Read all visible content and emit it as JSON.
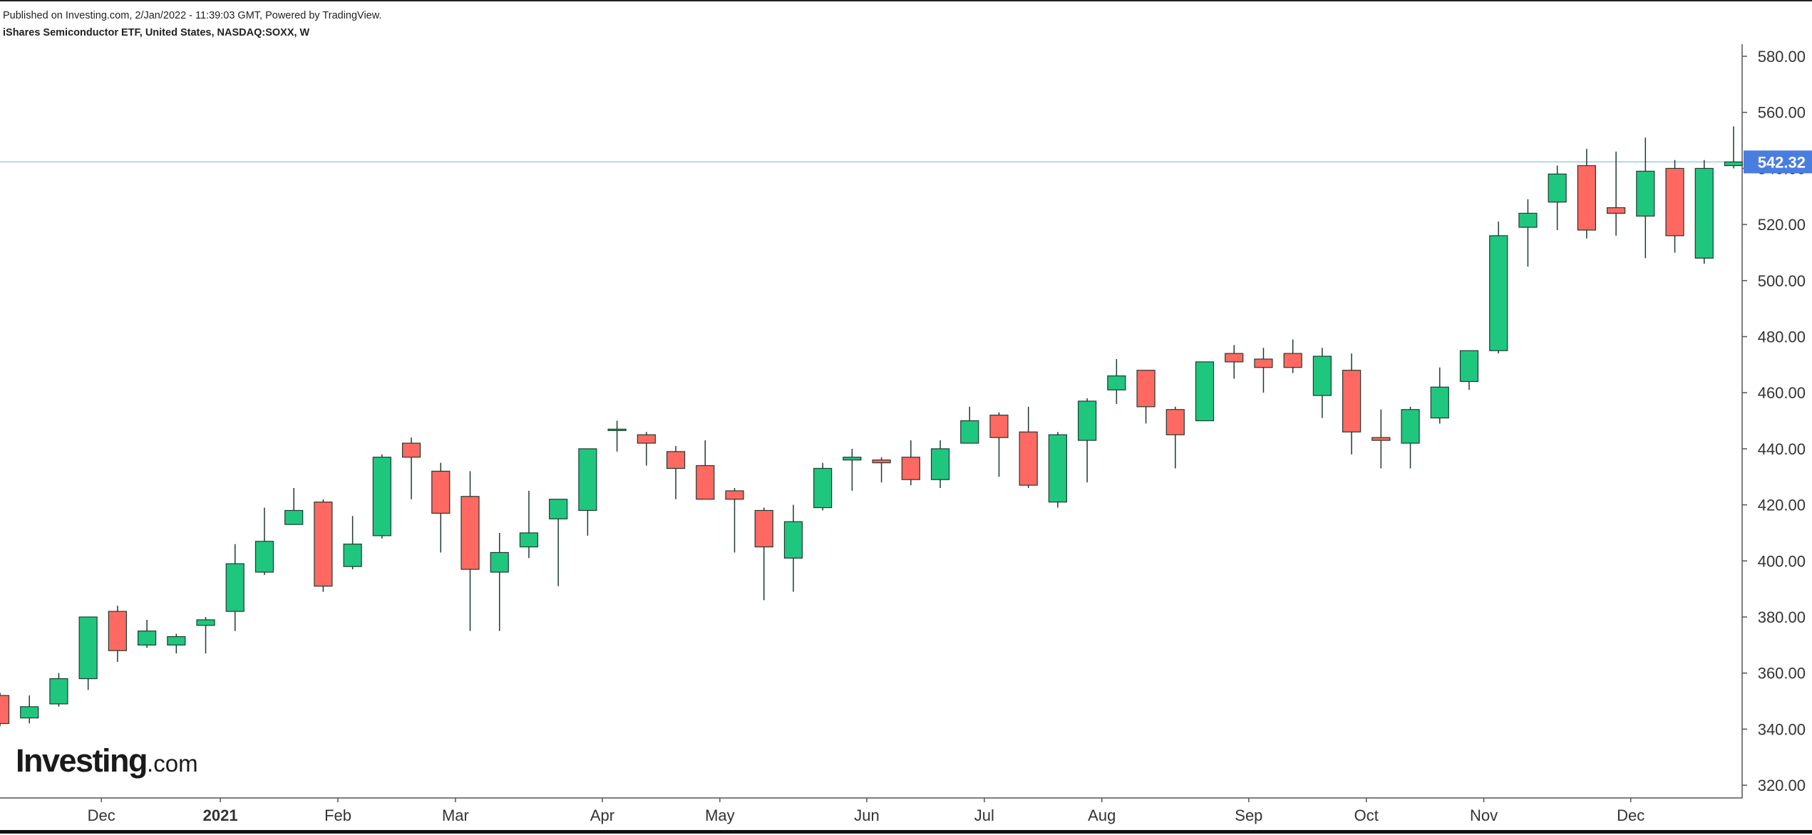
{
  "header": {
    "published": "Published on Investing.com, 2/Jan/2022 - 11:39:03 GMT, Powered by TradingView.",
    "symbol": "iShares Semiconductor ETF, United States, NASDAQ:SOXX, W"
  },
  "logo": {
    "main": "Investing",
    "suffix": ".com"
  },
  "colors": {
    "up": "#1fc77e",
    "down": "#ff6961",
    "wick": "#1f3a30",
    "last_line": "#9ecbe6",
    "last_label_bg": "#4a7de0",
    "axis": "#555555"
  },
  "chart_data": {
    "type": "candlestick",
    "title": "iShares Semiconductor ETF, United States, NASDAQ:SOXX, W",
    "interval": "weekly",
    "ylim": [
      315,
      585
    ],
    "y_ticks": [
      "580.00",
      "560.00",
      "540.00",
      "520.00",
      "500.00",
      "480.00",
      "460.00",
      "440.00",
      "420.00",
      "400.00",
      "380.00",
      "360.00",
      "340.00",
      "320.00"
    ],
    "x_labels": [
      {
        "label": "Dec",
        "index": 3.45,
        "bold": false
      },
      {
        "label": "2021",
        "index": 7.5,
        "bold": true
      },
      {
        "label": "Feb",
        "index": 11.5,
        "bold": false
      },
      {
        "label": "Mar",
        "index": 15.5,
        "bold": false
      },
      {
        "label": "Apr",
        "index": 20.5,
        "bold": false
      },
      {
        "label": "May",
        "index": 24.5,
        "bold": false
      },
      {
        "label": "Jun",
        "index": 29.5,
        "bold": false
      },
      {
        "label": "Jul",
        "index": 33.5,
        "bold": false
      },
      {
        "label": "Aug",
        "index": 37.5,
        "bold": false
      },
      {
        "label": "Sep",
        "index": 42.5,
        "bold": false
      },
      {
        "label": "Oct",
        "index": 46.5,
        "bold": false
      },
      {
        "label": "Nov",
        "index": 50.5,
        "bold": false
      },
      {
        "label": "Dec",
        "index": 55.5,
        "bold": false
      }
    ],
    "last_price": 542.32,
    "last_price_label": "542.32",
    "candles": [
      {
        "o": 352,
        "h": 353,
        "l": 341,
        "c": 342
      },
      {
        "o": 344,
        "h": 352,
        "l": 342,
        "c": 348
      },
      {
        "o": 349,
        "h": 360,
        "l": 348,
        "c": 358
      },
      {
        "o": 358,
        "h": 380,
        "l": 354,
        "c": 380
      },
      {
        "o": 382,
        "h": 384,
        "l": 364,
        "c": 368
      },
      {
        "o": 370,
        "h": 379,
        "l": 369,
        "c": 375
      },
      {
        "o": 370,
        "h": 374,
        "l": 367,
        "c": 373
      },
      {
        "o": 377,
        "h": 380,
        "l": 367,
        "c": 379
      },
      {
        "o": 382,
        "h": 406,
        "l": 375,
        "c": 399
      },
      {
        "o": 396,
        "h": 419,
        "l": 395,
        "c": 407
      },
      {
        "o": 413,
        "h": 426,
        "l": 413,
        "c": 418
      },
      {
        "o": 421,
        "h": 422,
        "l": 389,
        "c": 391
      },
      {
        "o": 398,
        "h": 416,
        "l": 397,
        "c": 406
      },
      {
        "o": 409,
        "h": 438,
        "l": 408,
        "c": 437
      },
      {
        "o": 442,
        "h": 444,
        "l": 422,
        "c": 437
      },
      {
        "o": 432,
        "h": 435,
        "l": 403,
        "c": 417
      },
      {
        "o": 423,
        "h": 432,
        "l": 375,
        "c": 397
      },
      {
        "o": 396,
        "h": 410,
        "l": 375,
        "c": 403
      },
      {
        "o": 405,
        "h": 425,
        "l": 401,
        "c": 410
      },
      {
        "o": 415,
        "h": 422,
        "l": 391,
        "c": 422
      },
      {
        "o": 418,
        "h": 440,
        "l": 409,
        "c": 440
      },
      {
        "o": 447,
        "h": 450,
        "l": 439,
        "c": 447
      },
      {
        "o": 445,
        "h": 446,
        "l": 434,
        "c": 442
      },
      {
        "o": 439,
        "h": 441,
        "l": 422,
        "c": 433
      },
      {
        "o": 434,
        "h": 443,
        "l": 422,
        "c": 422
      },
      {
        "o": 425,
        "h": 426,
        "l": 403,
        "c": 422
      },
      {
        "o": 418,
        "h": 419,
        "l": 386,
        "c": 405
      },
      {
        "o": 401,
        "h": 420,
        "l": 389,
        "c": 414
      },
      {
        "o": 419,
        "h": 435,
        "l": 418,
        "c": 433
      },
      {
        "o": 436,
        "h": 440,
        "l": 425,
        "c": 437
      },
      {
        "o": 436,
        "h": 437,
        "l": 428,
        "c": 435
      },
      {
        "o": 437,
        "h": 443,
        "l": 427,
        "c": 429
      },
      {
        "o": 429,
        "h": 443,
        "l": 426,
        "c": 440
      },
      {
        "o": 442,
        "h": 455,
        "l": 442,
        "c": 450
      },
      {
        "o": 452,
        "h": 453,
        "l": 430,
        "c": 444
      },
      {
        "o": 446,
        "h": 455,
        "l": 426,
        "c": 427
      },
      {
        "o": 421,
        "h": 446,
        "l": 419,
        "c": 445
      },
      {
        "o": 443,
        "h": 458,
        "l": 428,
        "c": 457
      },
      {
        "o": 461,
        "h": 472,
        "l": 456,
        "c": 466
      },
      {
        "o": 468,
        "h": 468,
        "l": 449,
        "c": 455
      },
      {
        "o": 454,
        "h": 455,
        "l": 433,
        "c": 445
      },
      {
        "o": 450,
        "h": 471,
        "l": 450,
        "c": 471
      },
      {
        "o": 474,
        "h": 477,
        "l": 465,
        "c": 471
      },
      {
        "o": 472,
        "h": 476,
        "l": 460,
        "c": 469
      },
      {
        "o": 474,
        "h": 479,
        "l": 467,
        "c": 469
      },
      {
        "o": 459,
        "h": 476,
        "l": 451,
        "c": 473
      },
      {
        "o": 468,
        "h": 474,
        "l": 438,
        "c": 446
      },
      {
        "o": 444,
        "h": 454,
        "l": 433,
        "c": 443
      },
      {
        "o": 442,
        "h": 455,
        "l": 433,
        "c": 454
      },
      {
        "o": 451,
        "h": 469,
        "l": 449,
        "c": 462
      },
      {
        "o": 464,
        "h": 475,
        "l": 461,
        "c": 475
      },
      {
        "o": 475,
        "h": 521,
        "l": 474,
        "c": 516
      },
      {
        "o": 519,
        "h": 529,
        "l": 505,
        "c": 524
      },
      {
        "o": 528,
        "h": 541,
        "l": 518,
        "c": 538
      },
      {
        "o": 541,
        "h": 547,
        "l": 515,
        "c": 518
      },
      {
        "o": 526,
        "h": 546,
        "l": 516,
        "c": 524
      },
      {
        "o": 523,
        "h": 551,
        "l": 508,
        "c": 539
      },
      {
        "o": 540,
        "h": 543,
        "l": 510,
        "c": 516
      },
      {
        "o": 508,
        "h": 543,
        "l": 506,
        "c": 540
      },
      {
        "o": 541,
        "h": 555,
        "l": 540,
        "c": 542.32
      }
    ]
  }
}
